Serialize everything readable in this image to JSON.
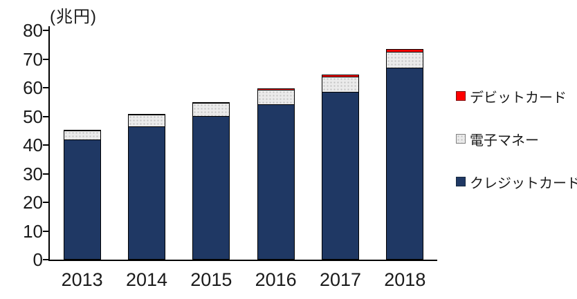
{
  "chart_data": {
    "type": "bar",
    "stacked": true,
    "title": "(兆円)",
    "ylabel": "兆円",
    "ylim": [
      0,
      80
    ],
    "ytick_step": 10,
    "grid": false,
    "legend_position": "right",
    "categories": [
      "2013",
      "2014",
      "2015",
      "2016",
      "2017",
      "2018"
    ],
    "series": [
      {
        "key": "credit-card",
        "name": "クレジットカード",
        "color": "#1F3864",
        "swatch_border": "#17293f",
        "values": [
          41.8,
          46.3,
          49.8,
          53.9,
          58.4,
          66.7
        ]
      },
      {
        "key": "electronic-money",
        "name": "電子マネー",
        "color": "#EBEBEB",
        "swatch_border": "#808080",
        "pattern": "dots",
        "values": [
          3.1,
          4.0,
          4.6,
          5.1,
          5.2,
          5.5
        ]
      },
      {
        "key": "debit-card",
        "name": "デビットカード",
        "color": "#FF0000",
        "swatch_border": "#7f0f0f",
        "values": [
          0.4,
          0.4,
          0.5,
          0.8,
          1.1,
          1.4
        ]
      }
    ],
    "legend_order_top_to_bottom": [
      "デビットカード",
      "電子マネー",
      "クレジットカード"
    ]
  }
}
